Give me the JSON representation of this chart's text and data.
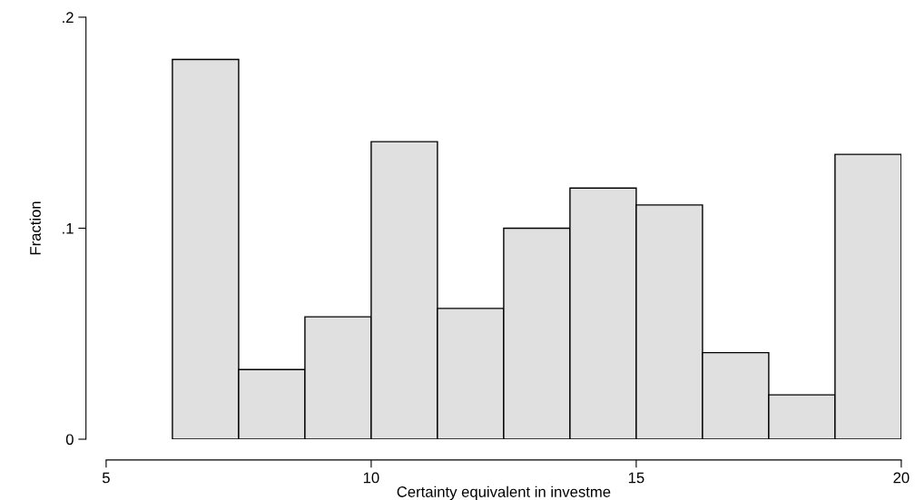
{
  "chart_data": {
    "type": "histogram",
    "xlabel": "Certainty equivalent in investme",
    "ylabel": "Fraction",
    "bins": [
      6.25,
      7.5,
      8.75,
      10,
      11.25,
      12.5,
      13.75,
      15,
      16.25,
      17.5,
      18.75,
      20
    ],
    "values": [
      0.18,
      0.033,
      0.058,
      0.141,
      0.062,
      0.1,
      0.119,
      0.111,
      0.041,
      0.021,
      0.135
    ],
    "color": "#e0e0e0",
    "xlim": [
      5,
      20
    ],
    "xticks": [
      5,
      10,
      15,
      20
    ],
    "ylim": [
      0,
      0.2
    ],
    "yticks": [
      {
        "value": 0,
        "label": "0"
      },
      {
        "value": 0.1,
        "label": ".1"
      },
      {
        "value": 0.2,
        "label": ".2"
      }
    ],
    "grid": false
  }
}
